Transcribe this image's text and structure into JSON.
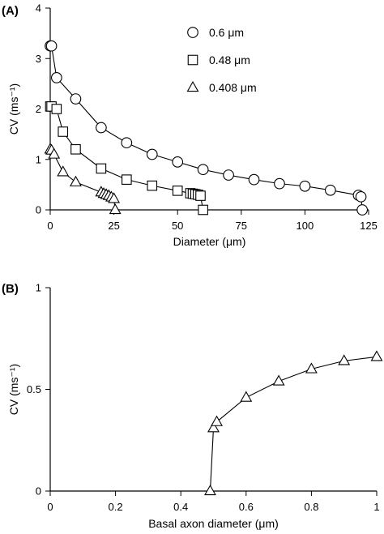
{
  "chart_data": [
    {
      "panel_label": "(A)",
      "type": "line",
      "xlabel": "Diameter (μm)",
      "ylabel": "CV (ms⁻¹)",
      "xlim": [
        0,
        125
      ],
      "ylim": [
        0,
        4
      ],
      "x_ticks": [
        0,
        25,
        50,
        75,
        100,
        125
      ],
      "x_tick_labels": [
        "0",
        "25",
        "50",
        "75",
        "100",
        "125"
      ],
      "y_ticks": [
        0,
        1,
        2,
        3,
        4
      ],
      "y_tick_labels": [
        "0",
        "1",
        "2",
        "3",
        "4"
      ],
      "legend_position": "top-right",
      "series": [
        {
          "name": "0.6 μm",
          "marker": "circle",
          "x": [
            0,
            0.5,
            2.5,
            10,
            20,
            30,
            40,
            50,
            60,
            70,
            80,
            90,
            100,
            110,
            121,
            122,
            122.5
          ],
          "y": [
            3.25,
            3.25,
            2.62,
            2.2,
            1.63,
            1.33,
            1.1,
            0.95,
            0.8,
            0.69,
            0.6,
            0.52,
            0.47,
            0.39,
            0.29,
            0.26,
            0
          ]
        },
        {
          "name": "0.48 μm",
          "marker": "square",
          "x": [
            0,
            0.5,
            2.5,
            5,
            10,
            20,
            30,
            40,
            50,
            55,
            56,
            57,
            58,
            59,
            60
          ],
          "y": [
            2.05,
            2.05,
            2.0,
            1.55,
            1.2,
            0.82,
            0.6,
            0.48,
            0.38,
            0.33,
            0.32,
            0.31,
            0.3,
            0.28,
            0
          ]
        },
        {
          "name": "0.408 μm",
          "marker": "triangle",
          "x": [
            0,
            0.5,
            1.5,
            5,
            10,
            20,
            21,
            22,
            23,
            24,
            25,
            25.5
          ],
          "y": [
            1.2,
            1.18,
            1.1,
            0.75,
            0.55,
            0.35,
            0.32,
            0.3,
            0.28,
            0.25,
            0.22,
            0
          ]
        }
      ]
    },
    {
      "panel_label": "(B)",
      "type": "line",
      "xlabel": "Basal axon diameter (μm)",
      "ylabel": "CV (ms⁻¹)",
      "xlim": [
        0,
        1
      ],
      "ylim": [
        0,
        1
      ],
      "x_ticks": [
        0,
        0.2,
        0.4,
        0.6,
        0.8,
        1
      ],
      "x_tick_labels": [
        "0",
        "0.2",
        "0.4",
        "0.6",
        "0.8",
        "1"
      ],
      "y_ticks": [
        0,
        0.5,
        1
      ],
      "y_tick_labels": [
        "0",
        "0.5",
        "1"
      ],
      "series": [
        {
          "marker": "triangle",
          "x": [
            0.49,
            0.5,
            0.51,
            0.6,
            0.7,
            0.8,
            0.9,
            1.0
          ],
          "y": [
            0,
            0.31,
            0.34,
            0.46,
            0.54,
            0.6,
            0.64,
            0.66
          ]
        }
      ]
    }
  ]
}
